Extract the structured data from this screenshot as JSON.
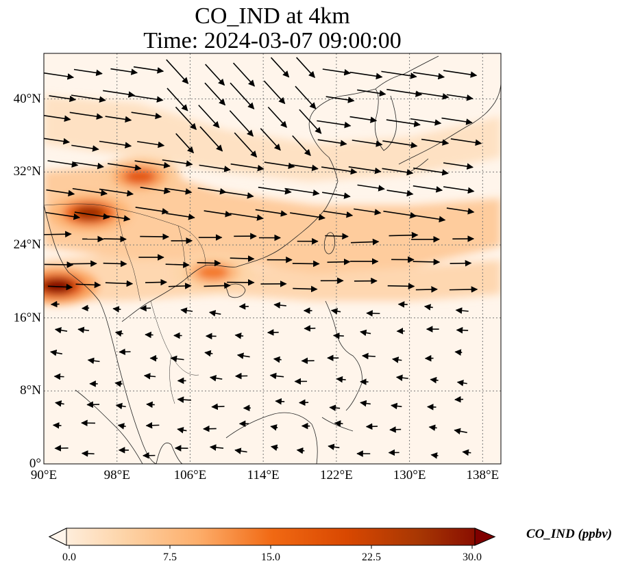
{
  "title": {
    "line1": "CO_IND at 4km",
    "line2": "Time: 2024-03-07 09:00:00"
  },
  "map": {
    "lon_range": [
      90,
      140
    ],
    "lat_range": [
      0,
      45
    ],
    "lon_ticks": [
      "90°E",
      "98°E",
      "106°E",
      "114°E",
      "122°E",
      "130°E",
      "138°E"
    ],
    "lat_ticks": [
      "0°",
      "8°N",
      "16°N",
      "24°N",
      "32°N",
      "40°N"
    ],
    "gridlines": "dotted",
    "field_variable": "CO_IND",
    "overlay": "wind vectors",
    "hotspots": [
      {
        "lon": 91.5,
        "lat": 19.5,
        "value": 30
      },
      {
        "lon": 95.0,
        "lat": 27.5,
        "value": 26
      },
      {
        "lon": 100.5,
        "lat": 31.5,
        "value": 18
      },
      {
        "lon": 108.5,
        "lat": 21.0,
        "value": 14
      }
    ]
  },
  "colorbar": {
    "ticks": [
      "0.0",
      "7.5",
      "15.0",
      "22.5",
      "30.0"
    ],
    "range": [
      0,
      30
    ],
    "label": "CO_IND (ppbv)",
    "colors": [
      "#fff5eb",
      "#fdd4a8",
      "#fdae6b",
      "#f16913",
      "#d94801",
      "#a63603",
      "#7f0000"
    ],
    "extend": "both"
  }
}
